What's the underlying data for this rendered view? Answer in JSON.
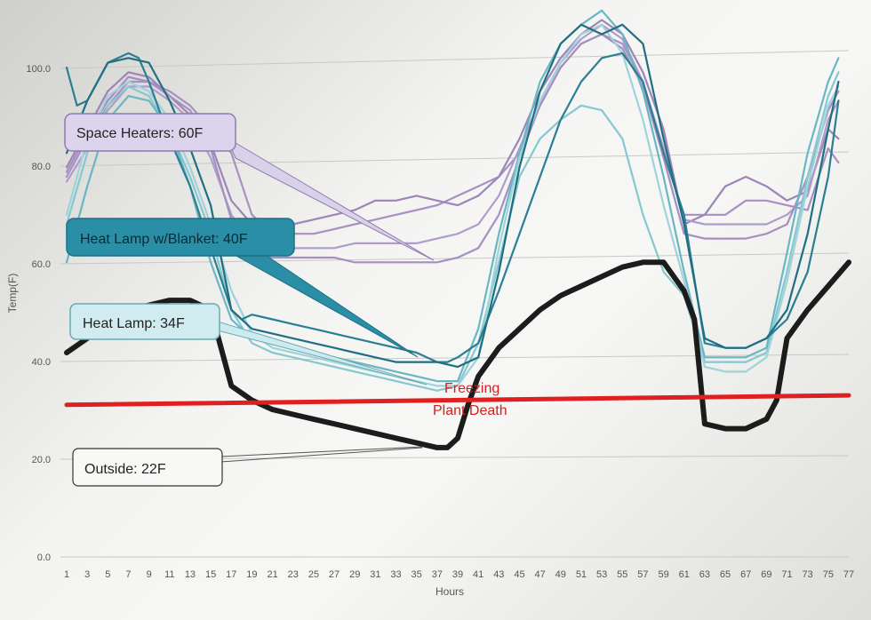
{
  "chart_data": {
    "type": "line",
    "xlabel": "Hours",
    "ylabel": "Temp(F)",
    "ylim": [
      0,
      100
    ],
    "y_ticks": [
      "0.0",
      "20.0",
      "40.0",
      "60.0",
      "80.0",
      "100.0"
    ],
    "x_ticks": [
      "1",
      "3",
      "5",
      "7",
      "9",
      "11",
      "13",
      "15",
      "17",
      "19",
      "21",
      "23",
      "25",
      "27",
      "29",
      "31",
      "33",
      "35",
      "37",
      "39",
      "41",
      "43",
      "45",
      "47",
      "49",
      "51",
      "53",
      "55",
      "57",
      "59",
      "61",
      "63",
      "65",
      "67",
      "69",
      "71",
      "73",
      "75",
      "77"
    ],
    "grid": true,
    "series": [
      {
        "group": "space-heater",
        "color": "#a890c4",
        "x": [
          1,
          3,
          5,
          7,
          9,
          11,
          13,
          15,
          17,
          19,
          21,
          23,
          25,
          27,
          29,
          31,
          33,
          35,
          37,
          39,
          41,
          43,
          45,
          47,
          49,
          51,
          53,
          55,
          57,
          59,
          61,
          63,
          65,
          67,
          69,
          71,
          73,
          75,
          76
        ],
        "values": [
          80,
          88,
          95,
          100,
          100,
          98,
          95,
          90,
          85,
          72,
          68,
          68,
          68,
          69,
          70,
          71,
          72,
          73,
          74,
          76,
          78,
          80,
          85,
          95,
          103,
          108,
          110,
          108,
          100,
          85,
          72,
          72,
          72,
          75,
          75,
          74,
          73,
          86,
          83
        ]
      },
      {
        "group": "space-heater",
        "color": "#9d85b8",
        "x": [
          1,
          3,
          5,
          7,
          9,
          11,
          13,
          15,
          17,
          19,
          21,
          23,
          25,
          27,
          29,
          31,
          33,
          35,
          37,
          39,
          41,
          43,
          45,
          47,
          49,
          51,
          53,
          55,
          57,
          59,
          61,
          63,
          65,
          67,
          69,
          71,
          73,
          75,
          76
        ],
        "values": [
          82,
          90,
          98,
          102,
          101,
          97,
          93,
          87,
          75,
          70,
          70,
          70,
          71,
          72,
          73,
          75,
          75,
          76,
          75,
          74,
          76,
          80,
          88,
          98,
          105,
          110,
          113,
          110,
          102,
          90,
          70,
          72,
          78,
          80,
          78,
          75,
          77,
          90,
          88
        ]
      },
      {
        "group": "space-heater",
        "color": "#b09cca",
        "x": [
          1,
          3,
          5,
          7,
          9,
          11,
          13,
          15,
          17,
          19,
          21,
          23,
          25,
          27,
          29,
          31,
          33,
          35,
          37,
          39,
          41,
          43,
          45,
          47,
          49,
          51,
          53,
          55,
          57,
          59,
          61,
          63,
          65,
          67,
          69,
          71,
          73,
          75,
          76
        ],
        "values": [
          79,
          86,
          94,
          99,
          99,
          96,
          92,
          84,
          72,
          66,
          65,
          65,
          65,
          65,
          66,
          66,
          66,
          66,
          67,
          68,
          70,
          76,
          86,
          96,
          104,
          109,
          112,
          109,
          100,
          86,
          71,
          70,
          70,
          70,
          70,
          72,
          76,
          92,
          96
        ]
      },
      {
        "group": "space-heater",
        "color": "#a58fc2",
        "x": [
          1,
          3,
          5,
          7,
          9,
          11,
          13,
          15,
          17,
          19,
          21,
          23,
          25,
          27,
          29,
          31,
          33,
          35,
          37,
          39,
          41,
          43,
          45,
          47,
          49,
          51,
          53,
          55,
          57,
          59,
          61,
          63,
          65,
          67,
          69,
          71,
          73,
          75,
          76
        ],
        "values": [
          81,
          89,
          96,
          101,
          100,
          97,
          94,
          86,
          71,
          64,
          63,
          63,
          63,
          63,
          62,
          62,
          62,
          62,
          62,
          63,
          65,
          72,
          84,
          95,
          103,
          108,
          110,
          107,
          99,
          84,
          68,
          67,
          67,
          67,
          68,
          70,
          80,
          94,
          98
        ]
      },
      {
        "group": "heat-lamp-blanket",
        "color": "#2a7f93",
        "x": [
          1,
          2,
          3,
          5,
          7,
          8,
          9,
          11,
          13,
          15,
          17,
          18,
          19,
          21,
          23,
          25,
          27,
          29,
          31,
          33,
          35,
          37,
          38,
          39,
          41,
          43,
          45,
          47,
          49,
          51,
          53,
          55,
          57,
          59,
          61,
          63,
          65,
          67,
          69,
          71,
          73,
          75,
          76
        ],
        "values": [
          103,
          95,
          96,
          104,
          106,
          105,
          100,
          88,
          78,
          65,
          52,
          50,
          51,
          50,
          49,
          48,
          47,
          46,
          45,
          44,
          43,
          41,
          41,
          42,
          45,
          56,
          68,
          80,
          92,
          100,
          105,
          106,
          100,
          85,
          72,
          45,
          44,
          44,
          46,
          50,
          60,
          80,
          96
        ]
      },
      {
        "group": "heat-lamp-blanket",
        "color": "#1f6f82",
        "x": [
          1,
          3,
          5,
          7,
          9,
          11,
          13,
          15,
          17,
          19,
          21,
          23,
          25,
          27,
          29,
          31,
          33,
          35,
          37,
          39,
          41,
          43,
          45,
          47,
          49,
          51,
          53,
          55,
          57,
          59,
          61,
          63,
          65,
          67,
          69,
          71,
          73,
          75,
          76
        ],
        "values": [
          85,
          96,
          104,
          105,
          104,
          96,
          86,
          74,
          52,
          48,
          47,
          46,
          45,
          44,
          43,
          42,
          41,
          41,
          41,
          40,
          42,
          60,
          82,
          98,
          108,
          112,
          110,
          112,
          108,
          88,
          70,
          46,
          44,
          44,
          46,
          52,
          68,
          90,
          100
        ]
      },
      {
        "group": "heat-lamp",
        "color": "#86c8d0",
        "x": [
          1,
          3,
          5,
          7,
          9,
          11,
          13,
          15,
          17,
          19,
          21,
          23,
          25,
          27,
          29,
          31,
          33,
          35,
          37,
          39,
          41,
          43,
          45,
          47,
          49,
          51,
          53,
          55,
          57,
          59,
          61,
          63,
          65,
          67,
          69,
          71,
          73,
          75,
          76
        ],
        "values": [
          70,
          85,
          95,
          99,
          97,
          90,
          80,
          68,
          52,
          45,
          43,
          42,
          41,
          40,
          39,
          38,
          37,
          36,
          35,
          36,
          45,
          62,
          80,
          88,
          92,
          95,
          94,
          88,
          72,
          60,
          55,
          41,
          41,
          41,
          43,
          60,
          80,
          97,
          102
        ]
      },
      {
        "group": "heat-lamp",
        "color": "#69b7c4",
        "x": [
          1,
          3,
          5,
          7,
          9,
          11,
          13,
          15,
          17,
          19,
          21,
          23,
          25,
          27,
          29,
          31,
          33,
          35,
          37,
          39,
          41,
          43,
          45,
          47,
          49,
          51,
          53,
          55,
          57,
          59,
          61,
          63,
          65,
          67,
          69,
          71,
          73,
          75,
          76
        ],
        "values": [
          62,
          78,
          92,
          97,
          96,
          90,
          78,
          62,
          50,
          46,
          45,
          44,
          43,
          42,
          41,
          40,
          39,
          38,
          37,
          37,
          48,
          68,
          85,
          100,
          108,
          112,
          115,
          110,
          98,
          80,
          60,
          42,
          42,
          42,
          44,
          64,
          85,
          100,
          105
        ]
      },
      {
        "group": "heat-lamp",
        "color": "#9fd3da",
        "x": [
          1,
          3,
          5,
          7,
          9,
          11,
          13,
          15,
          17,
          19,
          21,
          23,
          25,
          27,
          29,
          31,
          33,
          35,
          37,
          39,
          41,
          43,
          45,
          47,
          49,
          51,
          53,
          55,
          57,
          59,
          61,
          63,
          65,
          67,
          69,
          71,
          73,
          75,
          76
        ],
        "values": [
          72,
          88,
          97,
          100,
          98,
          92,
          82,
          70,
          56,
          47,
          44,
          43,
          42,
          41,
          40,
          39,
          38,
          37,
          36,
          36,
          42,
          65,
          84,
          96,
          104,
          110,
          112,
          106,
          92,
          74,
          58,
          40,
          39,
          39,
          42,
          58,
          78,
          95,
          99
        ]
      },
      {
        "group": "outside",
        "color": "#1c1c1c",
        "x": [
          1,
          3,
          5,
          7,
          9,
          11,
          13,
          15,
          17,
          19,
          21,
          23,
          25,
          27,
          29,
          31,
          33,
          35,
          37,
          38,
          39,
          40,
          41,
          43,
          45,
          47,
          49,
          51,
          53,
          55,
          57,
          59,
          61,
          62,
          63,
          65,
          67,
          69,
          70,
          71,
          73,
          75,
          77
        ],
        "values": [
          43,
          46,
          50,
          52,
          53,
          54,
          54,
          52,
          36,
          33,
          31,
          30,
          29,
          28,
          27,
          26,
          25,
          24,
          23,
          23,
          25,
          32,
          38,
          44,
          48,
          52,
          55,
          57,
          59,
          61,
          62,
          62,
          56,
          50,
          28,
          27,
          27,
          29,
          33,
          46,
          52,
          57,
          62
        ]
      },
      {
        "group": "freezing",
        "color": "#e02020",
        "x": [
          1,
          77
        ],
        "values": [
          32,
          34
        ]
      }
    ],
    "annotations": [
      {
        "text": "Space Heaters: 60F",
        "group": "space-heater"
      },
      {
        "text": "Heat Lamp w/Blanket: 40F",
        "group": "heat-lamp-blanket"
      },
      {
        "text": "Heat Lamp: 34F",
        "group": "heat-lamp"
      },
      {
        "text": "Outside: 22F",
        "group": "outside"
      },
      {
        "text": "Freezing",
        "group": "freezing"
      },
      {
        "text": "Plant Death",
        "group": "freezing"
      }
    ]
  }
}
